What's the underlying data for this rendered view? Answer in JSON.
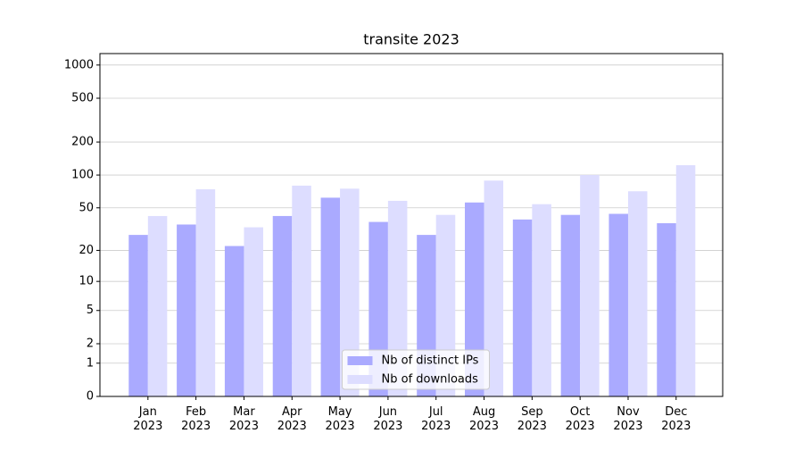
{
  "chart_data": {
    "type": "bar",
    "title": "transite 2023",
    "categories": [
      "Jan\n2023",
      "Feb\n2023",
      "Mar\n2023",
      "Apr\n2023",
      "May\n2023",
      "Jun\n2023",
      "Jul\n2023",
      "Aug\n2023",
      "Sep\n2023",
      "Oct\n2023",
      "Nov\n2023",
      "Dec\n2023"
    ],
    "series": [
      {
        "name": "Nb of distinct IPs",
        "color": "#aaaaff",
        "values": [
          28,
          35,
          22,
          42,
          62,
          37,
          28,
          56,
          39,
          43,
          44,
          36
        ]
      },
      {
        "name": "Nb of downloads",
        "color": "#ddddff",
        "values": [
          42,
          74,
          33,
          80,
          75,
          58,
          43,
          89,
          54,
          100,
          71,
          123
        ]
      }
    ],
    "yscale": "log1p",
    "ylim": [
      0,
      1270
    ],
    "yticks": [
      0,
      1,
      2,
      5,
      10,
      20,
      50,
      100,
      200,
      500,
      1000
    ],
    "grid": true,
    "legend": "lower center"
  }
}
